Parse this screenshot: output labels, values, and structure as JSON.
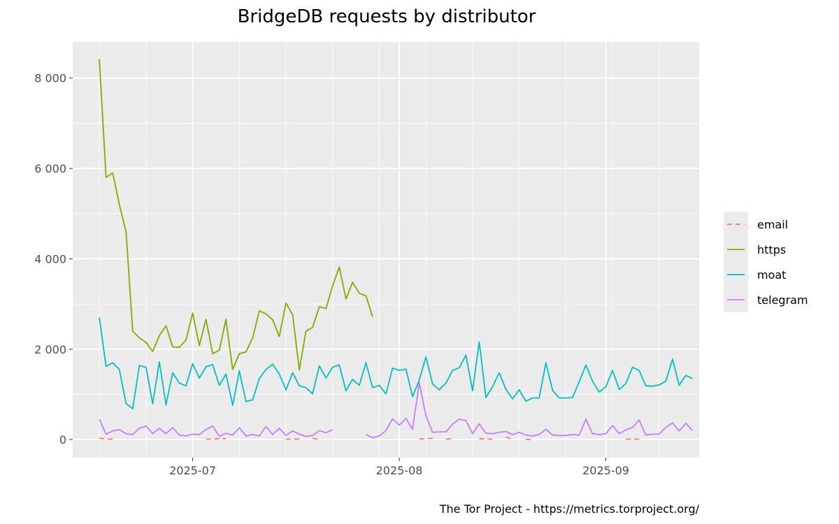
{
  "chart_data": {
    "type": "line",
    "title": "BridgeDB requests by distributor",
    "caption": "The Tor Project - https://metrics.torproject.org/",
    "xlabel": "",
    "ylabel": "",
    "x_start": "2025-06-17",
    "xlim": [
      "2025-06-13",
      "2025-09-15"
    ],
    "ylim": [
      -400,
      8800
    ],
    "y_ticks": [
      0,
      2000,
      4000,
      6000,
      8000
    ],
    "y_tick_labels": [
      "0",
      "2 000",
      "4 000",
      "6 000",
      "8 000"
    ],
    "x_ticks": [
      "2025-07-01",
      "2025-08-01",
      "2025-09-01"
    ],
    "x_tick_labels": [
      "2025-07",
      "2025-08",
      "2025-09"
    ],
    "grid": true,
    "legend_position": "right",
    "series": [
      {
        "name": "email",
        "color": "#F8766D",
        "dashed": true,
        "values": [
          30,
          10,
          10,
          null,
          null,
          null,
          null,
          null,
          null,
          null,
          null,
          null,
          null,
          null,
          null,
          null,
          10,
          10,
          20,
          20,
          null,
          null,
          null,
          null,
          null,
          null,
          null,
          null,
          10,
          10,
          10,
          null,
          30,
          0,
          null,
          null,
          null,
          null,
          null,
          null,
          null,
          null,
          null,
          null,
          null,
          null,
          null,
          null,
          10,
          20,
          30,
          null,
          10,
          20,
          null,
          null,
          null,
          20,
          10,
          10,
          null,
          60,
          0,
          null,
          0,
          0,
          null,
          null,
          null,
          null,
          null,
          null,
          null,
          null,
          null,
          null,
          null,
          null,
          null,
          10,
          10,
          10,
          null,
          null,
          null,
          null,
          null,
          null,
          null,
          null,
          null,
          null,
          null,
          null,
          null,
          null,
          null,
          null,
          null
        ]
      },
      {
        "name": "https",
        "color": "#7CAE00",
        "dashed": false,
        "values": [
          8420,
          5800,
          5900,
          5200,
          4600,
          2400,
          2250,
          2150,
          1950,
          2300,
          2520,
          2050,
          2040,
          2200,
          2800,
          2080,
          2660,
          1900,
          1980,
          2660,
          1550,
          1900,
          1940,
          2250,
          2850,
          2780,
          2650,
          2280,
          3020,
          2760,
          1540,
          2400,
          2480,
          2940,
          2900,
          3400,
          3820,
          3110,
          3480,
          3240,
          3180,
          2720,
          null,
          null,
          null,
          null,
          null,
          null,
          null,
          null,
          null,
          null,
          null,
          null,
          null,
          null,
          null,
          null,
          null,
          null,
          null,
          null,
          null,
          null,
          null,
          null,
          null,
          null,
          null,
          null,
          null,
          null,
          null,
          null,
          null,
          null,
          null,
          null,
          null,
          null,
          null,
          null,
          null,
          null,
          null,
          null,
          null,
          null,
          null,
          null,
          null,
          null,
          null,
          null,
          null,
          null,
          null,
          null,
          null
        ]
      },
      {
        "name": "moat",
        "color": "#00BFC4",
        "dashed": false,
        "values": [
          2700,
          1620,
          1700,
          1550,
          800,
          680,
          1640,
          1600,
          790,
          1720,
          770,
          1480,
          1250,
          1190,
          1680,
          1360,
          1610,
          1660,
          1200,
          1450,
          760,
          1520,
          840,
          880,
          1350,
          1550,
          1670,
          1450,
          1100,
          1480,
          1190,
          1150,
          1010,
          1630,
          1360,
          1600,
          1650,
          1080,
          1330,
          1200,
          1700,
          1150,
          1200,
          1010,
          1580,
          1530,
          1560,
          950,
          1320,
          1830,
          1230,
          1100,
          1250,
          1530,
          1590,
          1870,
          1080,
          2160,
          930,
          1170,
          1480,
          1110,
          900,
          1100,
          850,
          920,
          920,
          1700,
          1090,
          920,
          920,
          930,
          1280,
          1650,
          1290,
          1050,
          1170,
          1530,
          1110,
          1240,
          1600,
          1530,
          1190,
          1180,
          1210,
          1290,
          1780,
          1200,
          1420,
          1350
        ]
      },
      {
        "name": "telegram",
        "color": "#C77CFF",
        "dashed": false,
        "values": [
          450,
          120,
          190,
          220,
          130,
          110,
          250,
          300,
          130,
          250,
          130,
          260,
          100,
          80,
          120,
          110,
          220,
          300,
          70,
          140,
          100,
          260,
          80,
          110,
          80,
          290,
          110,
          250,
          90,
          190,
          120,
          70,
          90,
          200,
          150,
          220,
          null,
          null,
          null,
          null,
          110,
          40,
          80,
          200,
          460,
          320,
          470,
          230,
          1260,
          530,
          160,
          170,
          170,
          340,
          450,
          420,
          130,
          350,
          140,
          130,
          160,
          180,
          110,
          160,
          100,
          80,
          110,
          230,
          100,
          90,
          90,
          110,
          100,
          450,
          130,
          110,
          130,
          310,
          130,
          210,
          270,
          430,
          100,
          120,
          120,
          270,
          370,
          190,
          360,
          200
        ]
      }
    ]
  }
}
